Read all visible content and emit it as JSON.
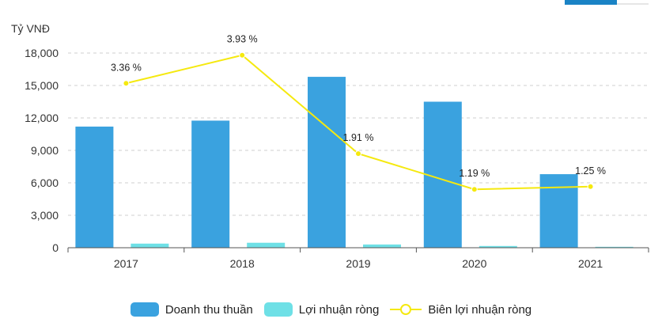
{
  "colors": {
    "revenue": "#3aa2df",
    "profit": "#6ee0e6",
    "margin": "#f5e90f",
    "tab_accent": "#1a83c5"
  },
  "chart_data": {
    "type": "bar",
    "unit_label": "Tỷ VNĐ",
    "categories": [
      "2017",
      "2018",
      "2019",
      "2020",
      "2021"
    ],
    "ylim": [
      0,
      18000
    ],
    "yticks": [
      "0",
      "3,000",
      "6,000",
      "9,000",
      "12,000",
      "15,000",
      "18,000"
    ],
    "ytick_values": [
      0,
      3000,
      6000,
      9000,
      12000,
      15000,
      18000
    ],
    "grid": true,
    "series": [
      {
        "name": "Doanh thu thuần",
        "type": "bar",
        "values": [
          11200,
          11750,
          15800,
          13500,
          6800
        ]
      },
      {
        "name": "Lợi nhuận ròng",
        "type": "bar",
        "values": [
          380,
          460,
          300,
          160,
          85
        ]
      },
      {
        "name": "Biên lợi nhuận ròng",
        "type": "line",
        "values": [
          3.36,
          3.93,
          1.91,
          1.19,
          1.25
        ],
        "labels": [
          "3.36 %",
          "3.93 %",
          "1.91 %",
          "1.19 %",
          "1.25 %"
        ],
        "line_level_on_left_axis": [
          15200,
          17800,
          8700,
          5400,
          5650
        ]
      }
    ],
    "legend_position": "bottom"
  }
}
